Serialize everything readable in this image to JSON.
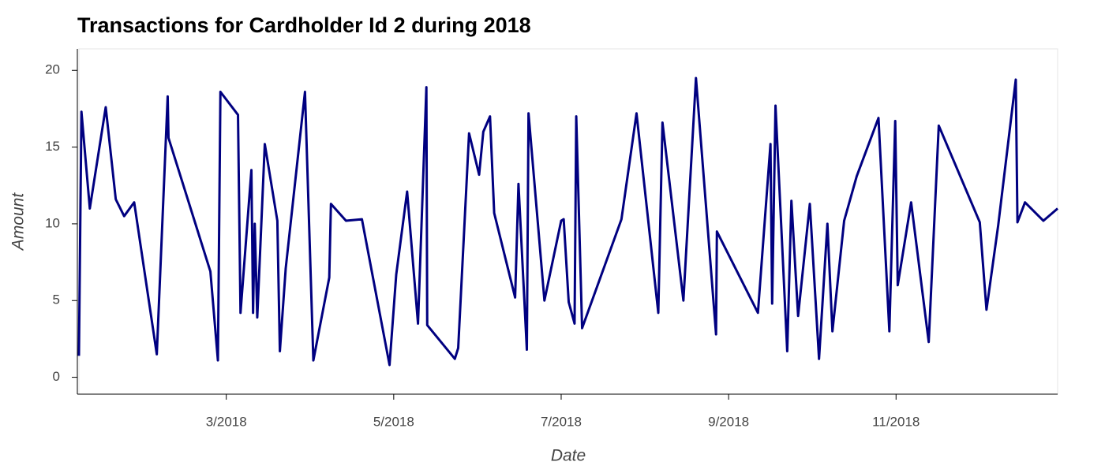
{
  "chart_data": {
    "type": "line",
    "title": "Transactions for Cardholder Id 2 during 2018",
    "x_label": "Date",
    "y_label": "Amount",
    "color": "#000080",
    "x": [
      1.24,
      1.27,
      1.37,
      1.56,
      1.68,
      1.78,
      1.9,
      2.17,
      2.3,
      2.31,
      2.81,
      2.9,
      2.93,
      3.14,
      3.17,
      3.3,
      3.32,
      3.34,
      3.37,
      3.46,
      3.58,
      3.61,
      3.64,
      3.71,
      3.94,
      4.04,
      4.23,
      4.25,
      4.43,
      4.62,
      4.95,
      5.03,
      5.16,
      5.29,
      5.39,
      5.4,
      5.73,
      5.77,
      5.9,
      6.02,
      6.07,
      6.15,
      6.2,
      6.45,
      6.49,
      6.59,
      6.61,
      6.8,
      7.0,
      7.03,
      7.09,
      7.16,
      7.18,
      7.25,
      7.72,
      7.9,
      8.16,
      8.21,
      8.46,
      8.61,
      8.85,
      8.86,
      9.35,
      9.5,
      9.52,
      9.56,
      9.7,
      9.75,
      9.83,
      9.97,
      10.08,
      10.18,
      10.24,
      10.38,
      10.53,
      10.79,
      10.92,
      10.99,
      11.02,
      11.18,
      11.39,
      11.51,
      12.0,
      12.08,
      12.22,
      12.43,
      12.45,
      12.54,
      12.76,
      12.93
    ],
    "values": [
      1.4,
      17.3,
      11.0,
      17.6,
      11.6,
      10.5,
      11.4,
      1.5,
      18.3,
      15.6,
      6.9,
      1.1,
      18.6,
      17.1,
      4.2,
      13.5,
      4.2,
      10.0,
      3.9,
      15.2,
      11.2,
      10.2,
      1.7,
      7.1,
      18.6,
      1.1,
      6.5,
      11.3,
      10.2,
      10.3,
      0.8,
      6.7,
      12.1,
      3.5,
      18.9,
      3.4,
      1.2,
      1.9,
      15.9,
      13.2,
      16.0,
      17.0,
      10.7,
      5.2,
      12.6,
      1.8,
      17.2,
      5.0,
      10.2,
      10.3,
      4.9,
      3.5,
      17.0,
      3.2,
      10.3,
      17.2,
      4.2,
      16.6,
      5.0,
      19.5,
      2.8,
      9.5,
      4.2,
      15.2,
      4.8,
      17.7,
      1.7,
      11.5,
      4.0,
      11.3,
      1.2,
      10.0,
      3.0,
      10.2,
      13.1,
      16.9,
      3.0,
      16.7,
      6.0,
      11.4,
      2.3,
      16.4,
      10.1,
      4.4,
      9.9,
      19.4,
      10.1,
      11.4,
      10.2,
      11.0
    ],
    "xlim": [
      1.24,
      12.93
    ],
    "xticks": [
      {
        "value": 3,
        "label": "3/2018"
      },
      {
        "value": 5,
        "label": "5/2018"
      },
      {
        "value": 7,
        "label": "7/2018"
      },
      {
        "value": 9,
        "label": "9/2018"
      },
      {
        "value": 11,
        "label": "11/2018"
      }
    ],
    "ylim": [
      -1.1,
      21.4
    ],
    "yticks": [
      0,
      5,
      10,
      15,
      20
    ]
  }
}
